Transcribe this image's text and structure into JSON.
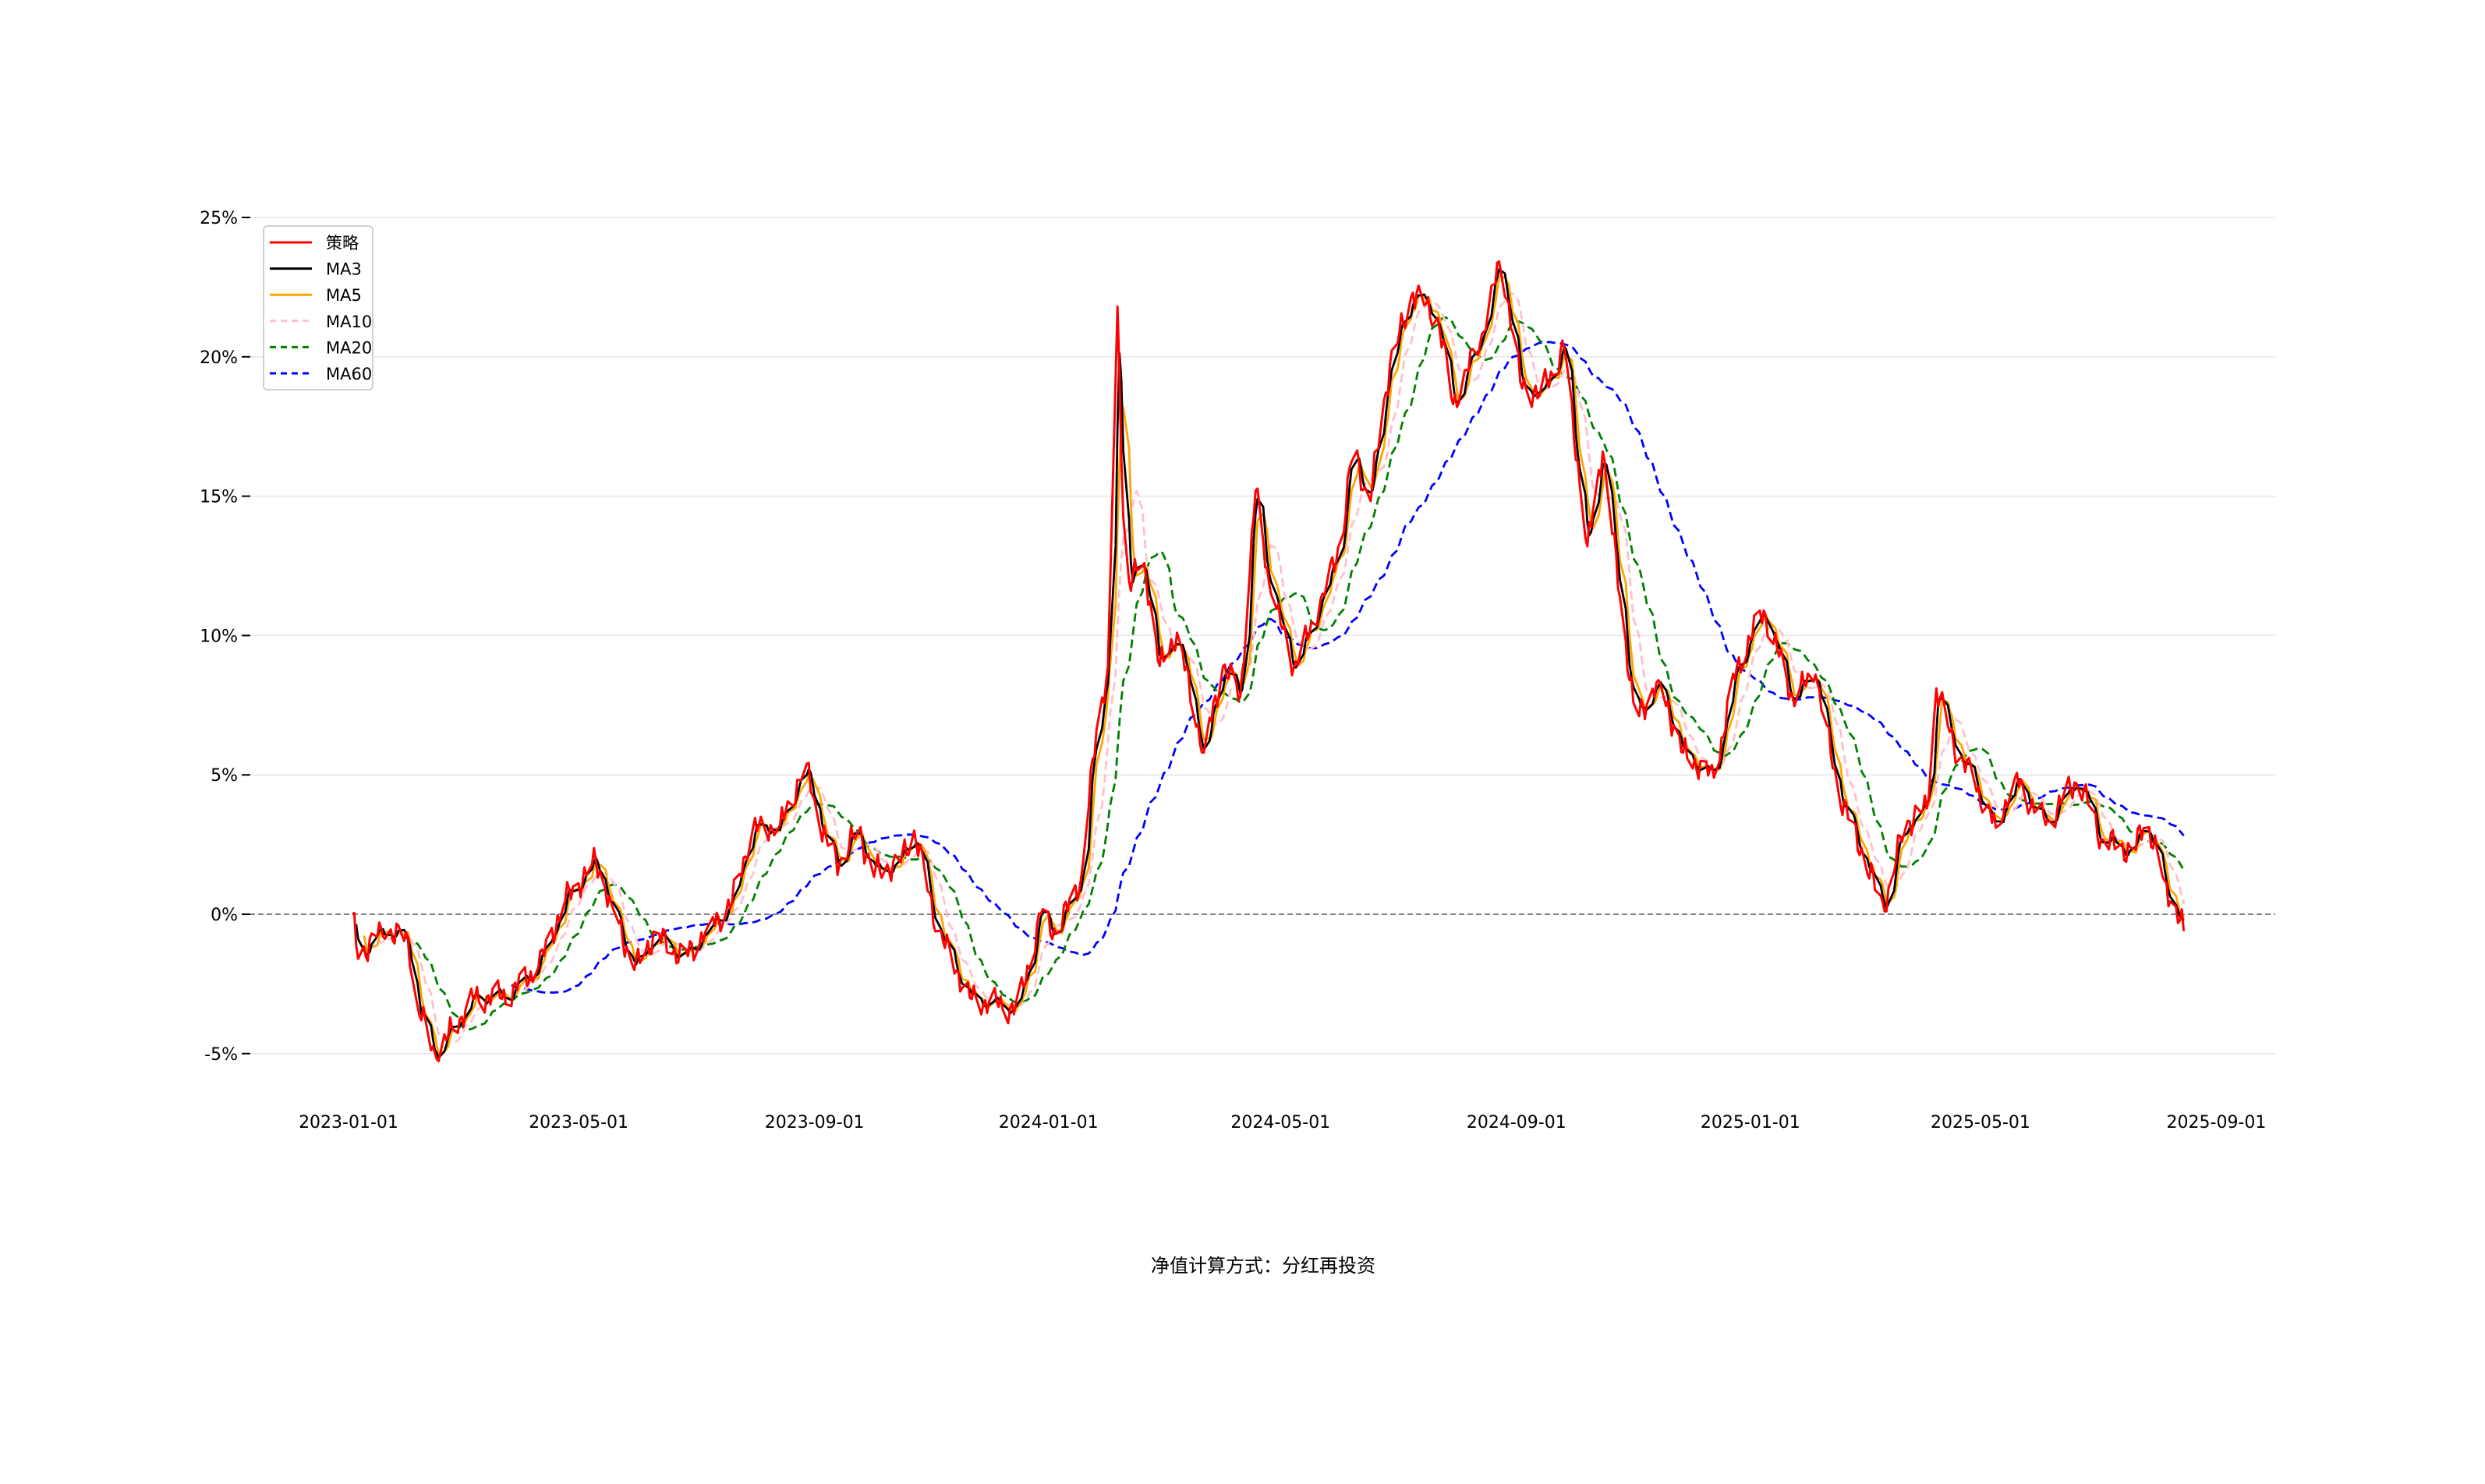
{
  "chart_data": {
    "type": "line",
    "title": "",
    "caption": "净值计算方式：分红再投资",
    "xlabel": "",
    "ylabel": "",
    "ylim": [
      -6.5,
      25.5
    ],
    "yticks": [
      -5,
      0,
      5,
      10,
      15,
      20,
      25
    ],
    "ytick_labels": [
      "-5%",
      "0%",
      "5%",
      "10%",
      "15%",
      "20%",
      "25%"
    ],
    "xticks": [
      "2023-01-01",
      "2023-05-01",
      "2023-09-01",
      "2024-01-01",
      "2024-05-01",
      "2024-09-01",
      "2025-01-01",
      "2025-05-01",
      "2025-09-01"
    ],
    "grid": "horizontal",
    "reference_line": 0,
    "legend_position": "top-left",
    "series": [
      {
        "name": "策略",
        "color": "#ff0000",
        "style": "solid",
        "window": 1
      },
      {
        "name": "MA3",
        "color": "#000000",
        "style": "solid",
        "window": 3
      },
      {
        "name": "MA5",
        "color": "#ffa500",
        "style": "solid",
        "window": 5
      },
      {
        "name": "MA10",
        "color": "#ffc0cb",
        "style": "dashed",
        "window": 10
      },
      {
        "name": "MA20",
        "color": "#008000",
        "style": "dashed",
        "window": 20
      },
      {
        "name": "MA60",
        "color": "#0000ff",
        "style": "dashed",
        "window": 60
      }
    ],
    "strategy_points": [
      [
        "2023-01-03",
        0.0
      ],
      [
        "2023-01-06",
        -1.6
      ],
      [
        "2023-01-18",
        -0.5
      ],
      [
        "2023-02-01",
        -0.9
      ],
      [
        "2023-02-06",
        -3.3
      ],
      [
        "2023-02-16",
        -5.2
      ],
      [
        "2023-02-24",
        -4.1
      ],
      [
        "2023-03-08",
        -3.0
      ],
      [
        "2023-03-25",
        -2.9
      ],
      [
        "2023-04-10",
        -1.9
      ],
      [
        "2023-04-24",
        0.5
      ],
      [
        "2023-05-10",
        1.9
      ],
      [
        "2023-05-18",
        0.4
      ],
      [
        "2023-05-30",
        -2.0
      ],
      [
        "2023-06-10",
        -0.7
      ],
      [
        "2023-06-25",
        -1.6
      ],
      [
        "2023-07-07",
        -0.5
      ],
      [
        "2023-07-20",
        0.4
      ],
      [
        "2023-07-30",
        3.0
      ],
      [
        "2023-08-14",
        3.2
      ],
      [
        "2023-08-28",
        5.4
      ],
      [
        "2023-09-04",
        3.0
      ],
      [
        "2023-09-14",
        1.8
      ],
      [
        "2023-09-24",
        3.1
      ],
      [
        "2023-10-01",
        1.5
      ],
      [
        "2023-10-15",
        1.8
      ],
      [
        "2023-10-23",
        3.0
      ],
      [
        "2023-11-04",
        -0.5
      ],
      [
        "2023-11-21",
        -3.0
      ],
      [
        "2023-12-16",
        -3.4
      ],
      [
        "2023-12-28",
        0.0
      ],
      [
        "2024-01-05",
        -0.7
      ],
      [
        "2024-01-18",
        1.3
      ],
      [
        "2024-01-26",
        6.6
      ],
      [
        "2024-02-01",
        8.9
      ],
      [
        "2024-02-06",
        21.8
      ],
      [
        "2024-02-10",
        11.8
      ],
      [
        "2024-02-20",
        12.6
      ],
      [
        "2024-02-28",
        8.9
      ],
      [
        "2024-03-08",
        10.1
      ],
      [
        "2024-03-22",
        5.8
      ],
      [
        "2024-04-01",
        8.9
      ],
      [
        "2024-04-10",
        7.8
      ],
      [
        "2024-04-18",
        15.2
      ],
      [
        "2024-04-26",
        11.5
      ],
      [
        "2024-05-08",
        8.9
      ],
      [
        "2024-05-21",
        10.9
      ],
      [
        "2024-06-02",
        13.5
      ],
      [
        "2024-06-08",
        16.9
      ],
      [
        "2024-06-16",
        14.6
      ],
      [
        "2024-06-27",
        19.7
      ],
      [
        "2024-07-09",
        22.3
      ],
      [
        "2024-07-22",
        21.4
      ],
      [
        "2024-07-30",
        18.3
      ],
      [
        "2024-08-15",
        20.9
      ],
      [
        "2024-08-24",
        23.6
      ],
      [
        "2024-09-03",
        19.1
      ],
      [
        "2024-09-13",
        18.6
      ],
      [
        "2024-09-26",
        20.3
      ],
      [
        "2024-10-08",
        13.2
      ],
      [
        "2024-10-16",
        16.6
      ],
      [
        "2024-11-02",
        6.9
      ],
      [
        "2024-11-14",
        8.4
      ],
      [
        "2024-11-27",
        5.8
      ],
      [
        "2024-12-13",
        4.9
      ],
      [
        "2024-12-25",
        8.9
      ],
      [
        "2025-01-08",
        10.9
      ],
      [
        "2025-01-23",
        7.8
      ],
      [
        "2025-02-04",
        8.6
      ],
      [
        "2025-02-16",
        4.4
      ],
      [
        "2025-03-01",
        2.1
      ],
      [
        "2025-03-12",
        0.1
      ],
      [
        "2025-03-22",
        3.2
      ],
      [
        "2025-04-03",
        3.8
      ],
      [
        "2025-04-08",
        8.1
      ],
      [
        "2025-04-17",
        6.1
      ],
      [
        "2025-04-28",
        4.7
      ],
      [
        "2025-05-09",
        3.1
      ],
      [
        "2025-05-19",
        4.9
      ],
      [
        "2025-06-04",
        3.2
      ],
      [
        "2025-06-21",
        4.9
      ],
      [
        "2025-07-03",
        2.7
      ],
      [
        "2025-07-20",
        2.2
      ],
      [
        "2025-07-26",
        3.5
      ],
      [
        "2025-08-05",
        1.2
      ],
      [
        "2025-08-15",
        -0.6
      ]
    ]
  }
}
